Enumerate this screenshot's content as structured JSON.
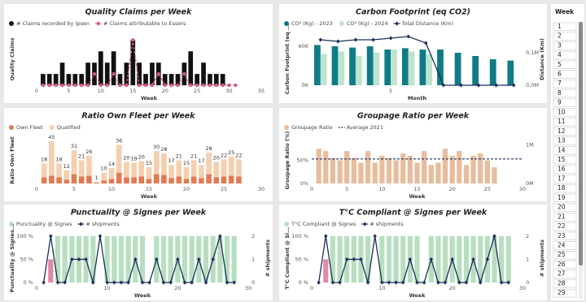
{
  "chart_data": [
    {
      "type": "combo",
      "title": "Quality Claims per Week",
      "x_label": "Week",
      "y_label": "Quality Claims",
      "x": [
        1,
        2,
        3,
        4,
        5,
        6,
        7,
        8,
        9,
        10,
        11,
        12,
        13,
        14,
        15,
        16,
        17,
        18,
        19,
        20,
        21,
        22,
        23,
        24,
        25,
        26,
        27,
        28,
        29,
        30,
        31
      ],
      "xlim": [
        0,
        35
      ],
      "xticks": [
        0,
        5,
        10,
        15,
        20,
        25,
        30,
        35
      ],
      "ylim": [
        0,
        4.6
      ],
      "series": [
        {
          "name": "# Claims recorded by Ipsen",
          "type": "bar",
          "color": "#111111",
          "values": [
            1,
            1,
            1,
            2,
            1,
            1,
            1,
            2,
            2,
            3,
            2,
            3,
            1,
            2,
            4,
            2,
            1,
            2,
            2,
            1,
            1,
            1,
            2,
            3,
            1,
            2,
            1,
            1,
            1,
            0,
            0
          ]
        },
        {
          "name": "# Claims attributable to Essers",
          "type": "line",
          "color": "#d6588a",
          "dash": true,
          "marker": "circle",
          "values": [
            0,
            0,
            0,
            0,
            0,
            0,
            0,
            0,
            1,
            0,
            0,
            1,
            0,
            0,
            4,
            0,
            0,
            0,
            1,
            0,
            0,
            0,
            1,
            0,
            0,
            0,
            0,
            0,
            0,
            0,
            0
          ]
        }
      ]
    },
    {
      "type": "combo",
      "title": "Carbon Footprint (eq CO2)",
      "x_label": "Month",
      "y_label": "Carbon Footprint (eq ...",
      "y2_label": "Distance (Km)",
      "barmode": "group",
      "x": [
        1,
        2,
        3,
        4,
        5,
        6,
        7,
        8,
        9,
        10,
        11,
        12
      ],
      "xlim": [
        0.5,
        12.5
      ],
      "xticks": [
        5
      ],
      "ylim": [
        0,
        80000
      ],
      "yticks": [
        {
          "value": 0,
          "label": "0K"
        },
        {
          "value": 60000,
          "label": "60K"
        }
      ],
      "y2lim": [
        0,
        160000
      ],
      "y2ticks": [
        {
          "value": 0,
          "label": "0,0M"
        },
        {
          "value": 100000,
          "label": "0,1M"
        }
      ],
      "series": [
        {
          "name": "CO² (Kg) - 2023",
          "type": "bar",
          "color": "#0e7c86",
          "values": [
            62000,
            60000,
            58000,
            60000,
            55000,
            57000,
            55000,
            55000,
            50000,
            45000,
            40000,
            38000
          ]
        },
        {
          "name": "CO² (Kg) - 2024",
          "type": "bar",
          "color": "#bfe3cf",
          "values": [
            48000,
            52000,
            45000,
            50000,
            55000,
            52000,
            48000,
            null,
            null,
            null,
            null,
            null
          ]
        },
        {
          "name": "Total Distance (Km)",
          "type": "line",
          "axis": "y2",
          "color": "#1b2f5c",
          "marker": "diamond",
          "values": [
            140000,
            135000,
            140000,
            140000,
            145000,
            150000,
            130000,
            0,
            0,
            0,
            0,
            0
          ]
        }
      ]
    },
    {
      "type": "combo",
      "title": "Ratio Own Fleet per Week",
      "x_label": "Week",
      "y_label": "Ratio Own Fleet",
      "barmode": "stack",
      "x": [
        1,
        2,
        3,
        4,
        5,
        6,
        7,
        8,
        9,
        10,
        11,
        12,
        13,
        14,
        15,
        16,
        17,
        18,
        19,
        20,
        21,
        22,
        23,
        24,
        25,
        26,
        27
      ],
      "xlim": [
        0,
        30
      ],
      "xticks": [
        0,
        5,
        10,
        15,
        20,
        25,
        30
      ],
      "ylim": [
        0,
        60
      ],
      "series": [
        {
          "name": "Own Fleet",
          "type": "bar",
          "color": "#e07b53",
          "values": [
            8,
            10,
            8,
            5,
            12,
            9,
            10,
            1,
            4,
            6,
            14,
            8,
            8,
            9,
            6,
            12,
            11,
            7,
            9,
            6,
            9,
            7,
            12,
            8,
            9,
            10,
            9
          ]
        },
        {
          "name": "Qualified",
          "type": "bar",
          "color": "#f6cfae",
          "labels": true,
          "values": [
            18,
            45,
            18,
            12,
            31,
            21,
            26,
            1,
            10,
            14,
            36,
            20,
            19,
            20,
            15,
            30,
            28,
            17,
            21,
            15,
            21,
            17,
            28,
            20,
            22,
            25,
            22
          ]
        }
      ]
    },
    {
      "type": "combo",
      "title": "Groupage Ratio per Week",
      "x_label": "Week",
      "y_label": "Groupage Ratio (%)",
      "x": [
        1,
        2,
        3,
        4,
        5,
        6,
        7,
        8,
        9,
        10,
        11,
        12,
        13,
        14,
        15,
        16,
        17,
        18,
        19,
        20,
        21,
        22,
        23,
        24,
        25,
        26
      ],
      "xlim": [
        0,
        30
      ],
      "xticks": [
        0,
        5,
        10,
        15,
        20,
        25,
        30
      ],
      "ylim": [
        0,
        100
      ],
      "yticks": [
        {
          "value": 0,
          "label": "0%"
        },
        {
          "value": 50,
          "label": "50%"
        }
      ],
      "y2lim": [
        0,
        1200000
      ],
      "y2ticks": [
        {
          "value": 0,
          "label": "0M"
        },
        {
          "value": 1000000,
          "label": "1M"
        }
      ],
      "series": [
        {
          "name": "Groupage Ratio",
          "type": "bar",
          "color": "#e8bc9c",
          "values": [
            75,
            70,
            55,
            50,
            70,
            55,
            45,
            70,
            45,
            60,
            55,
            50,
            65,
            60,
            45,
            70,
            40,
            45,
            75,
            60,
            70,
            40,
            60,
            65,
            50,
            35
          ]
        },
        {
          "name": "Average 2021",
          "type": "hline",
          "color": "#1b2f5c",
          "dash": true,
          "value": 53
        }
      ]
    },
    {
      "type": "combo",
      "title": "Punctuality @ Signes per Week",
      "x_label": "Week",
      "y_label": "Punctuality @ Signes...",
      "y2_label": "# shipments",
      "x": [
        1,
        2,
        3,
        4,
        5,
        6,
        7,
        8,
        9,
        10,
        11,
        12,
        13,
        14,
        15,
        16,
        17,
        18,
        19,
        20,
        21,
        22,
        23,
        24,
        25,
        26,
        27,
        28
      ],
      "xlim": [
        0,
        30
      ],
      "xticks": [
        0,
        10,
        20,
        30
      ],
      "ylim": [
        0,
        105
      ],
      "yticks": [
        {
          "value": 0,
          "label": "0 %"
        },
        {
          "value": 50,
          "label": "50 %"
        },
        {
          "value": 100,
          "label": "100 %"
        }
      ],
      "y2lim": [
        0,
        2.1
      ],
      "y2ticks": [
        0,
        1,
        2
      ],
      "series": [
        {
          "name": "Punctuality @ Signes",
          "type": "bar",
          "color": "#b7dfbf",
          "values": [
            null,
            50,
            100,
            100,
            100,
            100,
            100,
            100,
            null,
            100,
            100,
            100,
            100,
            100,
            100,
            null,
            100,
            100,
            100,
            100,
            100,
            100,
            100,
            100,
            100,
            100,
            100,
            100
          ],
          "colors": [
            "#b7dfbf",
            "#e08aa8",
            "#b7dfbf",
            "#b7dfbf",
            "#b7dfbf",
            "#b7dfbf",
            "#b7dfbf",
            "#b7dfbf",
            "#b7dfbf",
            "#b7dfbf",
            "#b7dfbf",
            "#b7dfbf",
            "#b7dfbf",
            "#b7dfbf",
            "#b7dfbf",
            "#b7dfbf",
            "#b7dfbf",
            "#b7dfbf",
            "#b7dfbf",
            "#b7dfbf",
            "#b7dfbf",
            "#b7dfbf",
            "#b7dfbf",
            "#b7dfbf",
            "#b7dfbf",
            "#b7dfbf",
            "#b7dfbf",
            "#b7dfbf"
          ]
        },
        {
          "name": "# shipments",
          "type": "line",
          "axis": "y2",
          "color": "#1b2f5c",
          "marker": "diamond",
          "values": [
            0,
            2,
            0,
            0,
            1,
            1,
            1,
            0,
            2,
            0,
            0,
            0,
            0,
            1,
            0,
            0,
            1,
            0,
            0,
            1,
            0,
            0,
            1,
            0,
            1,
            2,
            0,
            0
          ]
        }
      ]
    },
    {
      "type": "combo",
      "title": "T°C Compliant @ Signes per Week",
      "x_label": "Week",
      "y_label": "T°C Compliant @ Si...",
      "y2_label": "# shipments",
      "x": [
        1,
        2,
        3,
        4,
        5,
        6,
        7,
        8,
        9,
        10,
        11,
        12,
        13,
        14,
        15,
        16,
        17,
        18,
        19,
        20,
        21,
        22,
        23,
        24,
        25,
        26,
        27,
        28
      ],
      "xlim": [
        0,
        30
      ],
      "xticks": [
        0,
        10,
        20,
        30
      ],
      "ylim": [
        0,
        105
      ],
      "yticks": [
        {
          "value": 0,
          "label": "0 %"
        },
        {
          "value": 50,
          "label": "50 %"
        },
        {
          "value": 100,
          "label": "100 %"
        }
      ],
      "y2lim": [
        0,
        2.1
      ],
      "y2ticks": [
        0,
        1,
        2
      ],
      "series": [
        {
          "name": "T°C Compliant @ Signes",
          "type": "bar",
          "color": "#b7dfbf",
          "values": [
            null,
            50,
            100,
            100,
            100,
            100,
            100,
            100,
            null,
            100,
            100,
            100,
            100,
            100,
            100,
            null,
            100,
            100,
            100,
            100,
            100,
            100,
            100,
            100,
            100,
            100,
            100,
            100
          ],
          "colors": [
            "#b7dfbf",
            "#e08aa8",
            "#b7dfbf",
            "#b7dfbf",
            "#b7dfbf",
            "#b7dfbf",
            "#b7dfbf",
            "#b7dfbf",
            "#b7dfbf",
            "#b7dfbf",
            "#b7dfbf",
            "#b7dfbf",
            "#b7dfbf",
            "#b7dfbf",
            "#b7dfbf",
            "#b7dfbf",
            "#b7dfbf",
            "#b7dfbf",
            "#b7dfbf",
            "#b7dfbf",
            "#b7dfbf",
            "#b7dfbf",
            "#b7dfbf",
            "#b7dfbf",
            "#b7dfbf",
            "#b7dfbf",
            "#b7dfbf",
            "#b7dfbf"
          ]
        },
        {
          "name": "# shipments",
          "type": "line",
          "axis": "y2",
          "color": "#1b2f5c",
          "marker": "diamond",
          "values": [
            0,
            2,
            0,
            0,
            1,
            1,
            1,
            0,
            2,
            0,
            0,
            0,
            0,
            1,
            0,
            0,
            1,
            0,
            0,
            1,
            0,
            0,
            1,
            0,
            1,
            2,
            0,
            0
          ]
        }
      ]
    }
  ],
  "slicer": {
    "title": "Week",
    "items": [
      1,
      2,
      3,
      4,
      5,
      6,
      7,
      8,
      9,
      10,
      11,
      12,
      13,
      14,
      15,
      16,
      17,
      18,
      19,
      20,
      21,
      22,
      23,
      24,
      25,
      26,
      27,
      28,
      29
    ]
  }
}
